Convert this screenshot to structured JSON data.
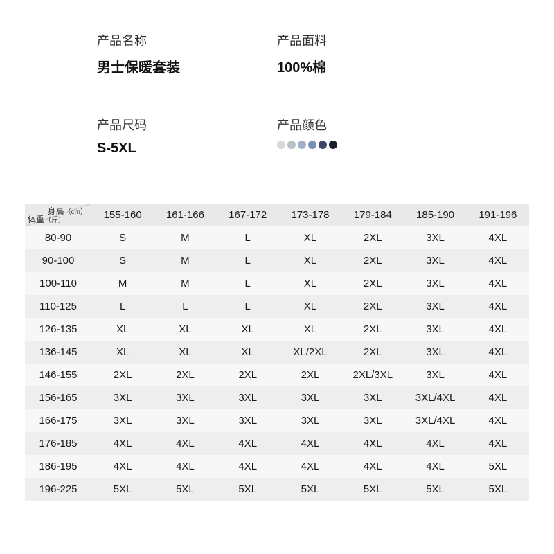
{
  "info": {
    "name_label": "产品名称",
    "name_value": "男士保暖套装",
    "fabric_label": "产品面料",
    "fabric_value": "100%棉",
    "size_label": "产品尺码",
    "size_value": "S-5XL",
    "color_label": "产品颜色",
    "swatch_colors": [
      "#d9d9d9",
      "#b8c0c8",
      "#9fb0c8",
      "#7a8fb5",
      "#3a4766",
      "#1a1f2e"
    ]
  },
  "table": {
    "corner_height_label": "身高",
    "corner_height_unit": "（cm）",
    "corner_weight_label": "体重",
    "corner_weight_unit": "（斤）",
    "height_headers": [
      "155-160",
      "161-166",
      "167-172",
      "173-178",
      "179-184",
      "185-190",
      "191-196"
    ],
    "weight_labels": [
      "80-90",
      "90-100",
      "100-110",
      "110-125",
      "126-135",
      "136-145",
      "146-155",
      "156-165",
      "166-175",
      "176-185",
      "186-195",
      "196-225"
    ],
    "rows": [
      [
        "S",
        "M",
        "L",
        "XL",
        "2XL",
        "3XL",
        "4XL"
      ],
      [
        "S",
        "M",
        "L",
        "XL",
        "2XL",
        "3XL",
        "4XL"
      ],
      [
        "M",
        "M",
        "L",
        "XL",
        "2XL",
        "3XL",
        "4XL"
      ],
      [
        "L",
        "L",
        "L",
        "XL",
        "2XL",
        "3XL",
        "4XL"
      ],
      [
        "XL",
        "XL",
        "XL",
        "XL",
        "2XL",
        "3XL",
        "4XL"
      ],
      [
        "XL",
        "XL",
        "XL",
        "XL/2XL",
        "2XL",
        "3XL",
        "4XL"
      ],
      [
        "2XL",
        "2XL",
        "2XL",
        "2XL",
        "2XL/3XL",
        "3XL",
        "4XL"
      ],
      [
        "3XL",
        "3XL",
        "3XL",
        "3XL",
        "3XL",
        "3XL/4XL",
        "4XL"
      ],
      [
        "3XL",
        "3XL",
        "3XL",
        "3XL",
        "3XL",
        "3XL/4XL",
        "4XL"
      ],
      [
        "4XL",
        "4XL",
        "4XL",
        "4XL",
        "4XL",
        "4XL",
        "4XL"
      ],
      [
        "4XL",
        "4XL",
        "4XL",
        "4XL",
        "4XL",
        "4XL",
        "5XL"
      ],
      [
        "5XL",
        "5XL",
        "5XL",
        "5XL",
        "5XL",
        "5XL",
        "5XL"
      ]
    ]
  },
  "style": {
    "header_bg": "#e9e9e9",
    "row_even_bg": "#eeeeee",
    "row_odd_bg": "#f7f7f7",
    "divider_color": "#d8d8d8",
    "text_color": "#1a1a1a"
  }
}
